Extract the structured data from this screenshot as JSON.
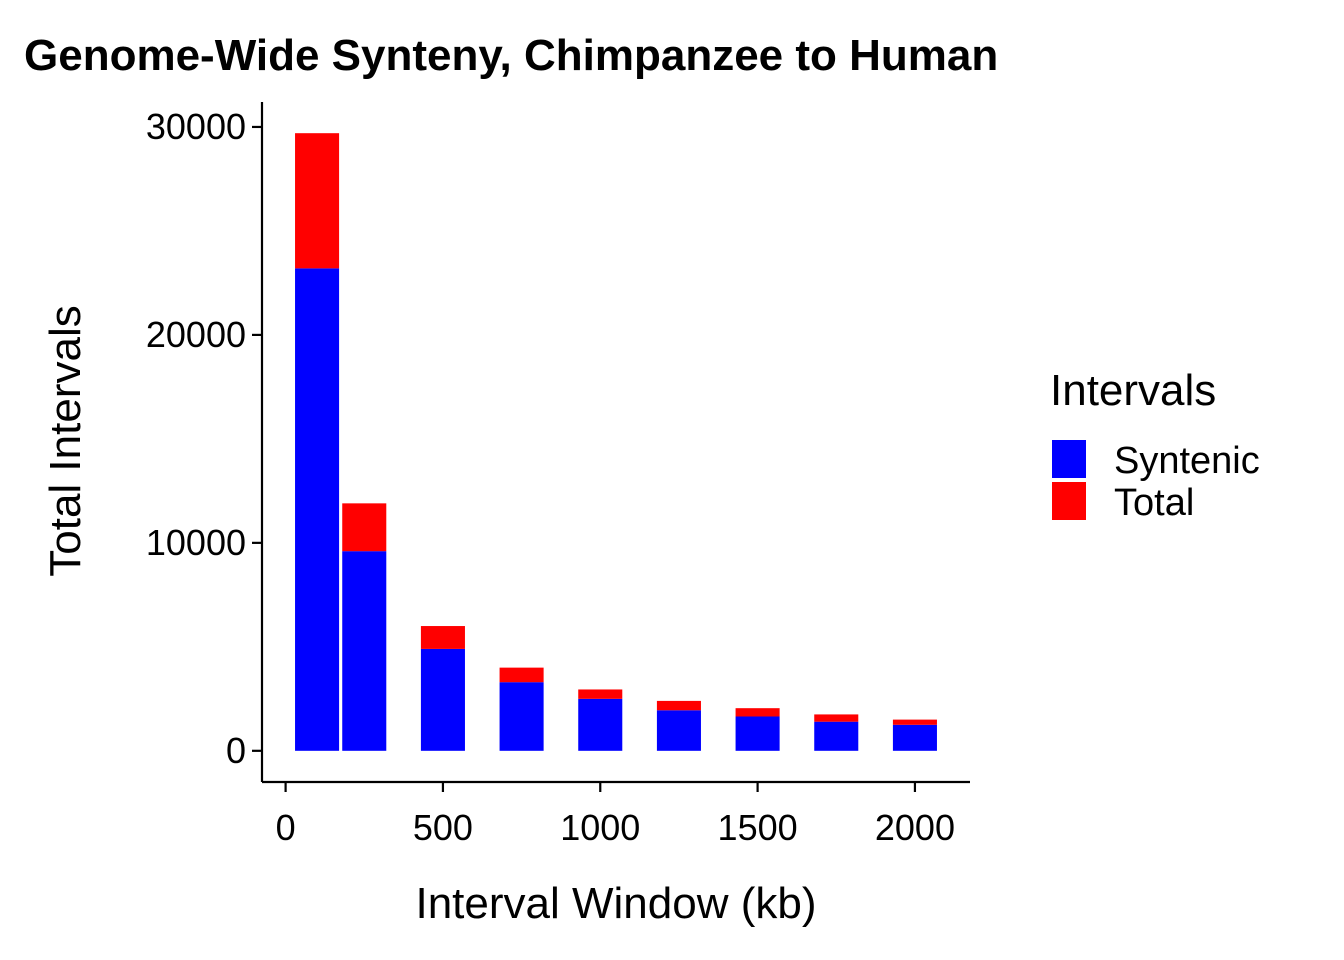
{
  "chart_data": {
    "type": "bar",
    "stacked": true,
    "title": "Genome-Wide Synteny, Chimpanzee to Human",
    "xlabel": "Interval Window (kb)",
    "ylabel": "Total Intervals",
    "xlim": [
      -75,
      2175
    ],
    "ylim": [
      -1500,
      31200
    ],
    "xticks": [
      0,
      500,
      1000,
      1500,
      2000
    ],
    "yticks": [
      0,
      10000,
      20000,
      30000
    ],
    "bar_width": 140,
    "x": [
      100,
      250,
      500,
      750,
      1000,
      1250,
      1500,
      1750,
      2000
    ],
    "series": [
      {
        "name": "Syntenic",
        "color": "#0000ff",
        "values": [
          23200,
          9600,
          4900,
          3300,
          2500,
          1950,
          1650,
          1400,
          1250
        ]
      },
      {
        "name": "Total",
        "color": "#ff0000",
        "values": [
          6500,
          2300,
          1100,
          700,
          450,
          450,
          400,
          350,
          250
        ]
      }
    ],
    "legend": {
      "title": "Intervals",
      "position": "right"
    },
    "grid": false
  }
}
